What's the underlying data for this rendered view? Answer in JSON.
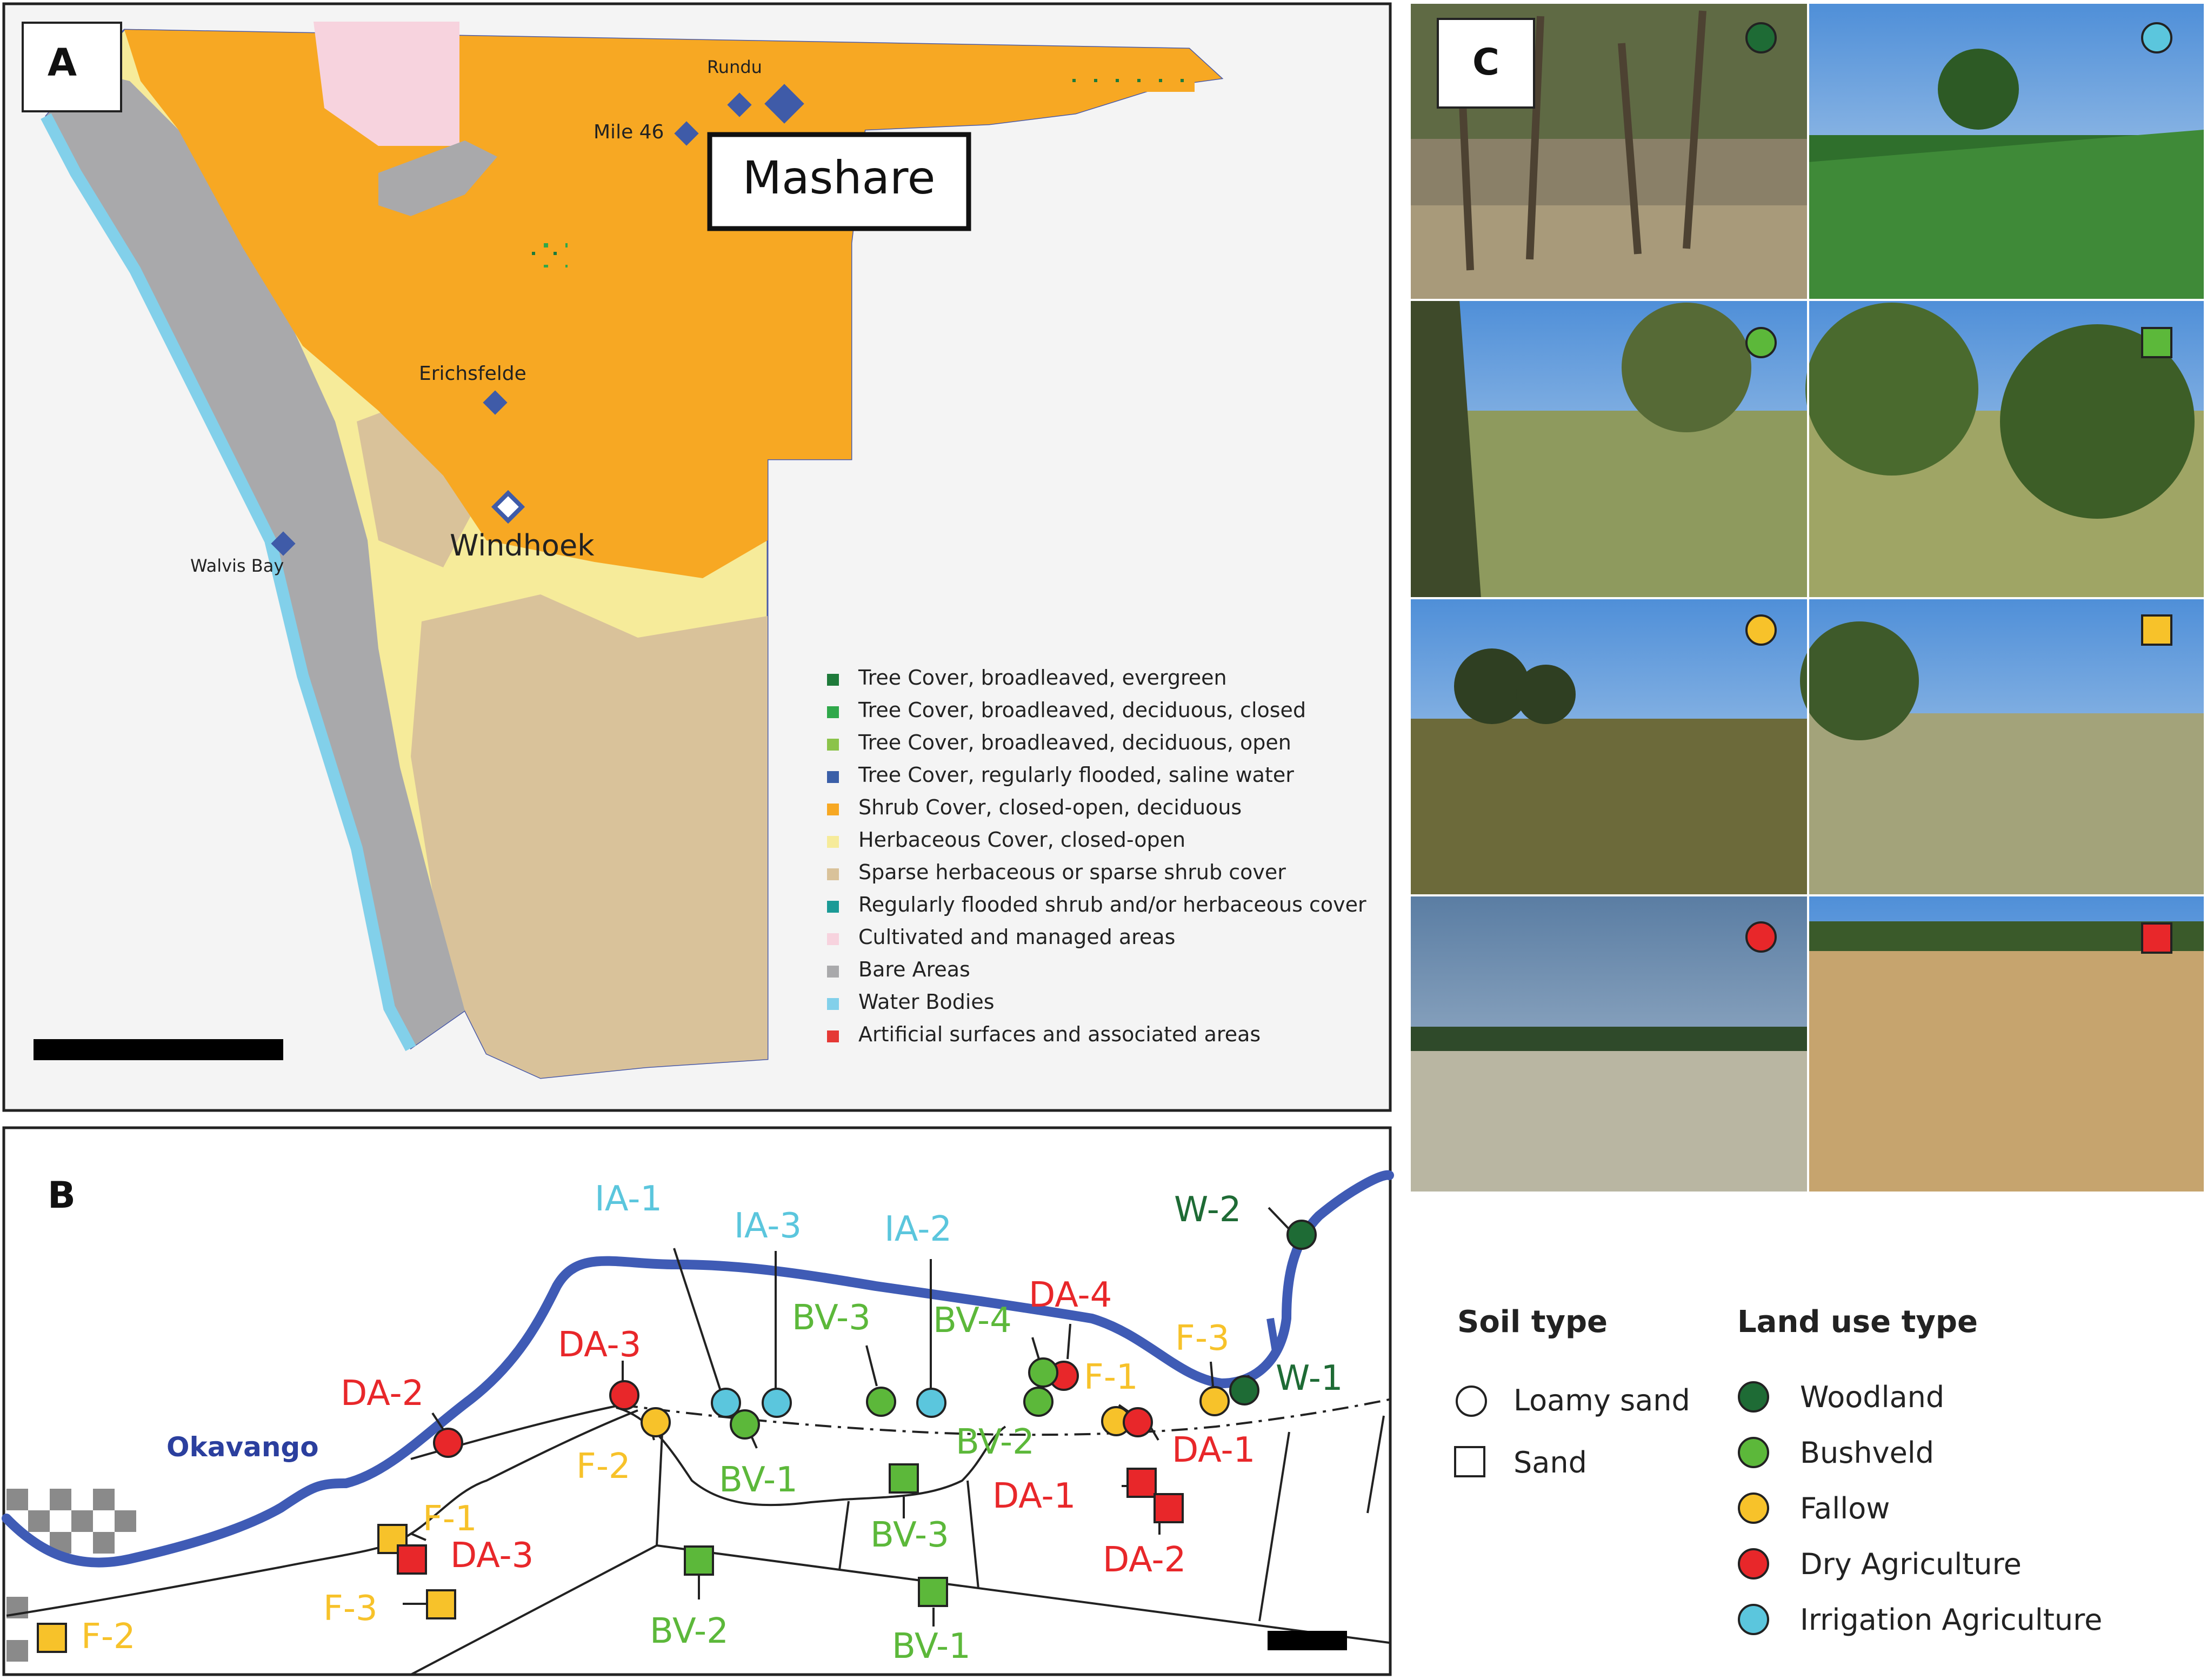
{
  "panels": {
    "a": {
      "label": "A",
      "highlight_label": "Mashare",
      "towns": [
        {
          "id": "rundu",
          "name": "Rundu"
        },
        {
          "id": "mile46",
          "name": "Mile 46"
        },
        {
          "id": "erichsfelde",
          "name": "Erichsfelde"
        },
        {
          "id": "windhoek",
          "name": "Windhoek"
        },
        {
          "id": "walvis",
          "name": "Walvis Bay"
        }
      ],
      "legend": [
        {
          "label": "Tree Cover, broadleaved, evergreen",
          "color": "#1e7a3a"
        },
        {
          "label": "Tree Cover, broadleaved, deciduous, closed",
          "color": "#2fa84a"
        },
        {
          "label": "Tree Cover, broadleaved, deciduous, open",
          "color": "#8bc34a"
        },
        {
          "label": "Tree Cover, regularly flooded, saline water",
          "color": "#3a5fa8"
        },
        {
          "label": "Shrub Cover, closed-open, deciduous",
          "color": "#f7a823"
        },
        {
          "label": "Herbaceous Cover, closed-open",
          "color": "#f6eb9a"
        },
        {
          "label": "Sparse herbaceous or sparse shrub cover",
          "color": "#d9c29a"
        },
        {
          "label": "Regularly flooded shrub and/or herbaceous cover",
          "color": "#1b9a96"
        },
        {
          "label": "Cultivated and managed areas",
          "color": "#f7d3de"
        },
        {
          "label": "Bare Areas",
          "color": "#a9a9ab"
        },
        {
          "label": "Water Bodies",
          "color": "#82d0ea"
        },
        {
          "label": "Artificial surfaces and associated areas",
          "color": "#e53935"
        }
      ]
    },
    "b": {
      "label": "B",
      "river_label": "Okavango",
      "sites": [
        {
          "id": "ia1",
          "label": "IA-1",
          "type": "Irrigation Agriculture",
          "soil": "Loamy sand"
        },
        {
          "id": "ia3",
          "label": "IA-3",
          "type": "Irrigation Agriculture",
          "soil": "Loamy sand"
        },
        {
          "id": "ia2",
          "label": "IA-2",
          "type": "Irrigation Agriculture",
          "soil": "Loamy sand"
        },
        {
          "id": "da4",
          "label": "DA-4",
          "type": "Dry Agriculture",
          "soil": "Loamy sand"
        },
        {
          "id": "w2",
          "label": "W-2",
          "type": "Woodland",
          "soil": "Loamy sand"
        },
        {
          "id": "da3c",
          "label": "DA-3",
          "type": "Dry Agriculture",
          "soil": "Loamy sand"
        },
        {
          "id": "da2c",
          "label": "DA-2",
          "type": "Dry Agriculture",
          "soil": "Loamy sand"
        },
        {
          "id": "bv3c",
          "label": "BV-3",
          "type": "Bushveld",
          "soil": "Loamy sand"
        },
        {
          "id": "bv4c",
          "label": "BV-4",
          "type": "Bushveld",
          "soil": "Loamy sand"
        },
        {
          "id": "f3c",
          "label": "F-3",
          "type": "Fallow",
          "soil": "Loamy sand"
        },
        {
          "id": "w1",
          "label": "W-1",
          "type": "Woodland",
          "soil": "Loamy sand"
        },
        {
          "id": "f1c",
          "label": "F-1",
          "type": "Fallow",
          "soil": "Loamy sand"
        },
        {
          "id": "da1c",
          "label": "DA-1",
          "type": "Dry Agriculture",
          "soil": "Loamy sand"
        },
        {
          "id": "bv2c",
          "label": "BV-2",
          "type": "Bushveld",
          "soil": "Loamy sand"
        },
        {
          "id": "f2c",
          "label": "F-2",
          "type": "Fallow",
          "soil": "Loamy sand"
        },
        {
          "id": "bv1c",
          "label": "BV-1",
          "type": "Bushveld",
          "soil": "Loamy sand"
        },
        {
          "id": "f1s",
          "label": "F-1",
          "type": "Fallow",
          "soil": "Sand"
        },
        {
          "id": "da3s",
          "label": "DA-3",
          "type": "Dry Agriculture",
          "soil": "Sand"
        },
        {
          "id": "f3s",
          "label": "F-3",
          "type": "Fallow",
          "soil": "Sand"
        },
        {
          "id": "f2s",
          "label": "F-2",
          "type": "Fallow",
          "soil": "Sand"
        },
        {
          "id": "bv2s",
          "label": "BV-2",
          "type": "Bushveld",
          "soil": "Sand"
        },
        {
          "id": "bv3s",
          "label": "BV-3",
          "type": "Bushveld",
          "soil": "Sand"
        },
        {
          "id": "bv1s",
          "label": "BV-1",
          "type": "Bushveld",
          "soil": "Sand"
        },
        {
          "id": "da1s",
          "label": "DA-1",
          "type": "Dry Agriculture",
          "soil": "Sand"
        },
        {
          "id": "da2s",
          "label": "DA-2",
          "type": "Dry Agriculture",
          "soil": "Sand"
        }
      ]
    },
    "c": {
      "label": "C",
      "photos": [
        {
          "type": "Woodland",
          "soil": "Loamy sand"
        },
        {
          "type": "Irrigation Agriculture",
          "soil": "Loamy sand"
        },
        {
          "type": "Bushveld",
          "soil": "Loamy sand"
        },
        {
          "type": "Bushveld",
          "soil": "Sand"
        },
        {
          "type": "Fallow",
          "soil": "Loamy sand"
        },
        {
          "type": "Fallow",
          "soil": "Sand"
        },
        {
          "type": "Dry Agriculture",
          "soil": "Loamy sand"
        },
        {
          "type": "Dry Agriculture",
          "soil": "Sand"
        }
      ]
    }
  },
  "legend_b": {
    "soil_title": "Soil type",
    "soil_types": [
      "Loamy sand",
      "Sand"
    ],
    "land_use_title": "Land use type",
    "land_use": [
      {
        "label": "Woodland",
        "color": "#1e6b35"
      },
      {
        "label": "Bushveld",
        "color": "#5cb83a"
      },
      {
        "label": "Fallow",
        "color": "#f7c22a"
      },
      {
        "label": "Dry Agriculture",
        "color": "#e8272a"
      },
      {
        "label": "Irrigation Agriculture",
        "color": "#5bc6dd"
      }
    ]
  },
  "colors": {
    "river": "#3f5bb5",
    "woodland_label": "#1e6b35",
    "bushveld_label": "#5cb83a",
    "fallow_label": "#f7c22a",
    "dry_label": "#e8272a",
    "irrigation_label": "#5bc6dd"
  }
}
